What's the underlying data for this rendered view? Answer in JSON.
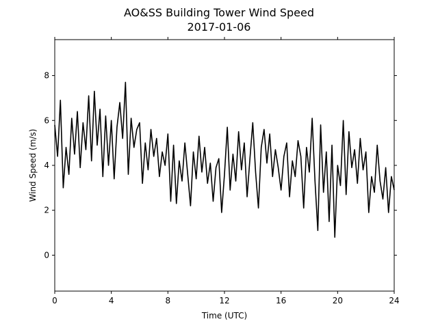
{
  "chart_data": {
    "type": "line",
    "title": "AO&SS Building Tower Wind Speed",
    "subtitle": "2017-01-06",
    "x_label": "Time (UTC)",
    "y_label": "Wind Speed (m/s)",
    "color": "#000000",
    "xlim": [
      0,
      24
    ],
    "xticks": [
      0,
      4,
      8,
      12,
      16,
      20,
      24
    ],
    "ylim": [
      -1.6,
      9.6
    ],
    "yticks": [
      0,
      2,
      4,
      6,
      8
    ],
    "grid": false,
    "x": [
      0,
      0.2,
      0.4,
      0.6,
      0.8,
      1,
      1.2,
      1.4,
      1.6,
      1.8,
      2,
      2.2,
      2.4,
      2.6,
      2.8,
      3,
      3.2,
      3.4,
      3.6,
      3.8,
      4,
      4.2,
      4.4,
      4.6,
      4.8,
      5,
      5.2,
      5.4,
      5.6,
      5.8,
      6,
      6.2,
      6.4,
      6.6,
      6.8,
      7,
      7.2,
      7.4,
      7.6,
      7.8,
      8,
      8.2,
      8.4,
      8.6,
      8.8,
      9,
      9.2,
      9.4,
      9.6,
      9.8,
      10,
      10.2,
      10.4,
      10.6,
      10.8,
      11,
      11.2,
      11.4,
      11.6,
      11.8,
      12,
      12.2,
      12.4,
      12.6,
      12.8,
      13,
      13.2,
      13.4,
      13.6,
      13.8,
      14,
      14.2,
      14.4,
      14.6,
      14.8,
      15,
      15.2,
      15.4,
      15.6,
      15.8,
      16,
      16.2,
      16.4,
      16.6,
      16.8,
      17,
      17.2,
      17.4,
      17.6,
      17.8,
      18,
      18.2,
      18.4,
      18.6,
      18.8,
      19,
      19.2,
      19.4,
      19.6,
      19.8,
      20,
      20.2,
      20.4,
      20.6,
      20.8,
      21,
      21.2,
      21.4,
      21.6,
      21.8,
      22,
      22.2,
      22.4,
      22.6,
      22.8,
      23,
      23.2,
      23.4,
      23.6,
      23.8,
      24
    ],
    "values": [
      5.8,
      4.4,
      6.9,
      3.0,
      4.8,
      3.6,
      6.1,
      4.5,
      6.4,
      3.9,
      5.9,
      4.7,
      7.1,
      4.2,
      7.3,
      4.9,
      6.5,
      3.5,
      6.2,
      4.0,
      6.0,
      3.4,
      5.7,
      6.8,
      5.2,
      7.7,
      3.6,
      6.1,
      4.8,
      5.6,
      5.9,
      3.2,
      5.0,
      3.8,
      5.6,
      4.4,
      5.2,
      3.5,
      4.6,
      4.0,
      5.4,
      2.4,
      4.9,
      2.3,
      4.2,
      3.3,
      5.0,
      3.6,
      2.2,
      4.6,
      3.4,
      5.3,
      3.7,
      4.8,
      3.2,
      4.1,
      2.4,
      3.9,
      4.3,
      1.9,
      3.6,
      5.7,
      2.9,
      4.5,
      3.3,
      5.5,
      3.8,
      5.0,
      2.6,
      4.3,
      5.9,
      3.7,
      2.1,
      4.8,
      5.6,
      4.1,
      5.4,
      3.5,
      4.7,
      3.9,
      2.9,
      4.4,
      5.0,
      2.6,
      4.2,
      3.5,
      5.1,
      4.4,
      2.1,
      4.8,
      3.7,
      6.1,
      3.3,
      1.1,
      5.8,
      2.8,
      4.6,
      1.5,
      4.9,
      0.8,
      4.0,
      3.1,
      6.0,
      2.7,
      5.5,
      3.9,
      4.7,
      3.2,
      5.2,
      3.8,
      4.6,
      1.9,
      3.5,
      2.8,
      4.9,
      3.3,
      2.5,
      3.9,
      1.9,
      3.5,
      2.9
    ]
  }
}
